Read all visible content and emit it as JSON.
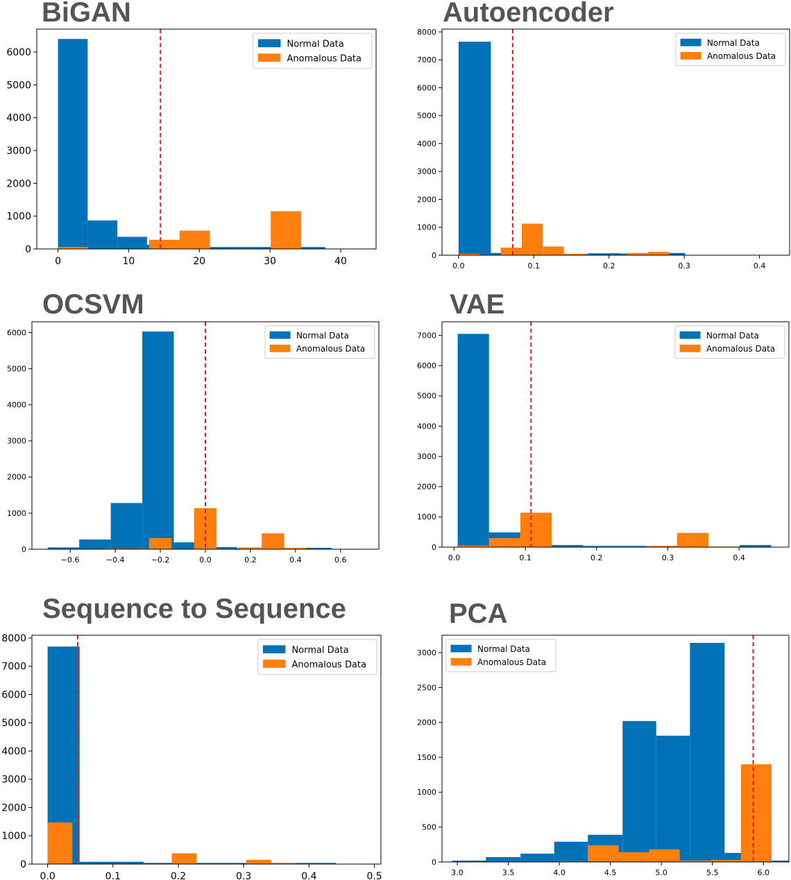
{
  "colors": {
    "normal": "#0072b8",
    "anomalous": "#ff7f0e",
    "threshold": "#e8191c"
  },
  "legend_labels": [
    "Normal Data",
    "Anomalous Data"
  ],
  "chart_data": [
    {
      "id": "bigan",
      "type": "bar",
      "title": "BiGAN",
      "xlabel": "",
      "ylabel": "",
      "xlim": [
        -3,
        45
      ],
      "ylim": [
        0,
        6700
      ],
      "xticks": [
        0,
        10,
        20,
        30,
        40
      ],
      "xtick_labels": [
        "0",
        "10",
        "20",
        "30",
        "40"
      ],
      "yticks": [
        0,
        1000,
        2000,
        3000,
        4000,
        5000,
        6000
      ],
      "ytick_labels": [
        "0",
        "1000",
        "2000",
        "3000",
        "4000",
        "5000",
        "6000"
      ],
      "threshold": 14.5,
      "legend_position": "top-right",
      "grid": false,
      "series": [
        {
          "name": "Normal Data",
          "bins": [
            [
              0,
              4.2,
              6400
            ],
            [
              4.2,
              8.4,
              870
            ],
            [
              8.4,
              12.6,
              370
            ],
            [
              12.6,
              16.8,
              130
            ],
            [
              16.8,
              21,
              80
            ],
            [
              21,
              25.2,
              60
            ],
            [
              25.2,
              29.4,
              60
            ],
            [
              29.4,
              33.6,
              60
            ],
            [
              33.6,
              37.8,
              60
            ],
            [
              37.8,
              42,
              10
            ]
          ]
        },
        {
          "name": "Anomalous Data",
          "bins": [
            [
              0,
              4.3,
              60
            ],
            [
              12.9,
              17.2,
              280
            ],
            [
              17.2,
              21.5,
              560
            ],
            [
              30.1,
              34.4,
              1150
            ]
          ]
        }
      ]
    },
    {
      "id": "autoencoder",
      "type": "bar",
      "title": "Autoencoder",
      "xlabel": "",
      "ylabel": "",
      "xlim": [
        -0.022,
        0.44
      ],
      "ylim": [
        0,
        8100
      ],
      "xticks": [
        0,
        0.1,
        0.2,
        0.3,
        0.4
      ],
      "xtick_labels": [
        "0.0",
        "0.1",
        "0.2",
        "0.3",
        "0.4"
      ],
      "yticks": [
        0,
        1000,
        2000,
        3000,
        4000,
        5000,
        6000,
        7000,
        8000
      ],
      "ytick_labels": [
        "0",
        "1000",
        "2000",
        "3000",
        "4000",
        "5000",
        "6000",
        "7000",
        "8000"
      ],
      "threshold": 0.072,
      "legend_position": "top-right",
      "grid": false,
      "series": [
        {
          "name": "Normal Data",
          "bins": [
            [
              0,
              0.043,
              7650
            ],
            [
              0.043,
              0.086,
              80
            ],
            [
              0.086,
              0.129,
              40
            ],
            [
              0.129,
              0.172,
              40
            ],
            [
              0.172,
              0.215,
              70
            ],
            [
              0.215,
              0.258,
              60
            ],
            [
              0.258,
              0.301,
              80
            ]
          ]
        },
        {
          "name": "Anomalous Data",
          "bins": [
            [
              0,
              0.028,
              50
            ],
            [
              0.056,
              0.084,
              270
            ],
            [
              0.084,
              0.112,
              1130
            ],
            [
              0.112,
              0.14,
              310
            ],
            [
              0.14,
              0.168,
              50
            ],
            [
              0.224,
              0.252,
              80
            ],
            [
              0.252,
              0.28,
              120
            ]
          ]
        }
      ]
    },
    {
      "id": "ocsvm",
      "type": "bar",
      "title": "OCSVM",
      "xlabel": "",
      "ylabel": "",
      "xlim": [
        -0.77,
        0.77
      ],
      "ylim": [
        0,
        6300
      ],
      "xticks": [
        -0.6,
        -0.4,
        -0.2,
        0.0,
        0.2,
        0.4,
        0.6
      ],
      "xtick_labels": [
        "−0.6",
        "−0.4",
        "−0.2",
        "0.0",
        "0.2",
        "0.4",
        "0.6"
      ],
      "yticks": [
        0,
        1000,
        2000,
        3000,
        4000,
        5000,
        6000
      ],
      "ytick_labels": [
        "0",
        "1000",
        "2000",
        "3000",
        "4000",
        "5000",
        "6000"
      ],
      "threshold": 0.0,
      "legend_position": "top-right",
      "grid": false,
      "series": [
        {
          "name": "Normal Data",
          "bins": [
            [
              -0.7,
              -0.56,
              50
            ],
            [
              -0.56,
              -0.42,
              270
            ],
            [
              -0.42,
              -0.28,
              1280
            ],
            [
              -0.28,
              -0.14,
              6030
            ],
            [
              -0.14,
              0.0,
              190
            ],
            [
              0.0,
              0.14,
              60
            ],
            [
              0.14,
              0.28,
              30
            ],
            [
              0.28,
              0.42,
              20
            ],
            [
              0.42,
              0.56,
              40
            ],
            [
              0.56,
              0.7,
              10
            ]
          ]
        },
        {
          "name": "Anomalous Data",
          "bins": [
            [
              -0.45,
              -0.35,
              20
            ],
            [
              -0.35,
              -0.25,
              20
            ],
            [
              -0.25,
              -0.15,
              310
            ],
            [
              -0.05,
              0.05,
              1140
            ],
            [
              0.15,
              0.25,
              50
            ],
            [
              0.25,
              0.35,
              440
            ],
            [
              0.35,
              0.45,
              40
            ]
          ]
        }
      ]
    },
    {
      "id": "vae",
      "type": "bar",
      "title": "VAE",
      "xlabel": "",
      "ylabel": "",
      "xlim": [
        -0.017,
        0.47
      ],
      "ylim": [
        0,
        7450
      ],
      "xticks": [
        0,
        0.1,
        0.2,
        0.3,
        0.4
      ],
      "xtick_labels": [
        "0.0",
        "0.1",
        "0.2",
        "0.3",
        "0.4"
      ],
      "yticks": [
        0,
        1000,
        2000,
        3000,
        4000,
        5000,
        6000,
        7000
      ],
      "ytick_labels": [
        "0",
        "1000",
        "2000",
        "3000",
        "4000",
        "5000",
        "6000",
        "7000"
      ],
      "threshold": 0.108,
      "legend_position": "top-right",
      "grid": false,
      "series": [
        {
          "name": "Normal Data",
          "bins": [
            [
              0.005,
              0.049,
              7050
            ],
            [
              0.049,
              0.093,
              490
            ],
            [
              0.093,
              0.137,
              200
            ],
            [
              0.137,
              0.181,
              70
            ],
            [
              0.181,
              0.225,
              40
            ],
            [
              0.225,
              0.269,
              40
            ],
            [
              0.269,
              0.313,
              40
            ],
            [
              0.313,
              0.357,
              30
            ],
            [
              0.357,
              0.401,
              10
            ],
            [
              0.401,
              0.445,
              70
            ]
          ]
        },
        {
          "name": "Anomalous Data",
          "bins": [
            [
              0.005,
              0.049,
              50
            ],
            [
              0.049,
              0.093,
              300
            ],
            [
              0.093,
              0.137,
              1140
            ],
            [
              0.269,
              0.313,
              40
            ],
            [
              0.313,
              0.357,
              470
            ],
            [
              0.357,
              0.401,
              20
            ]
          ]
        }
      ]
    },
    {
      "id": "seq2seq",
      "type": "bar",
      "title": "Sequence to Sequence",
      "xlabel": "",
      "ylabel": "",
      "xlim": [
        -0.024,
        0.51
      ],
      "ylim": [
        0,
        8100
      ],
      "xticks": [
        0,
        0.1,
        0.2,
        0.3,
        0.4,
        0.5
      ],
      "xtick_labels": [
        "0.0",
        "0.1",
        "0.2",
        "0.3",
        "0.4",
        "0.5"
      ],
      "yticks": [
        0,
        1000,
        2000,
        3000,
        4000,
        5000,
        6000,
        7000,
        8000
      ],
      "ytick_labels": [
        "0",
        "1000",
        "2000",
        "3000",
        "4000",
        "5000",
        "6000",
        "7000",
        "8000"
      ],
      "threshold": 0.046,
      "legend_position": "top-right",
      "grid": false,
      "series": [
        {
          "name": "Normal Data",
          "bins": [
            [
              0,
              0.049,
              7700
            ],
            [
              0.049,
              0.098,
              80
            ],
            [
              0.098,
              0.147,
              80
            ],
            [
              0.147,
              0.196,
              40
            ],
            [
              0.196,
              0.245,
              40
            ],
            [
              0.245,
              0.294,
              40
            ],
            [
              0.294,
              0.343,
              40
            ],
            [
              0.343,
              0.392,
              40
            ],
            [
              0.392,
              0.441,
              40
            ]
          ]
        },
        {
          "name": "Anomalous Data",
          "bins": [
            [
              0,
              0.038,
              1470
            ],
            [
              0.19,
              0.228,
              380
            ],
            [
              0.304,
              0.342,
              150
            ],
            [
              0.342,
              0.38,
              40
            ]
          ]
        }
      ]
    },
    {
      "id": "pca",
      "type": "bar",
      "title": "PCA",
      "xlabel": "",
      "ylabel": "",
      "xlim": [
        2.85,
        6.25
      ],
      "ylim": [
        0,
        3250
      ],
      "xticks": [
        3.0,
        3.5,
        4.0,
        4.5,
        5.0,
        5.5,
        6.0
      ],
      "xtick_labels": [
        "3.0",
        "3.5",
        "4.0",
        "4.5",
        "5.0",
        "5.5",
        "6.0"
      ],
      "yticks": [
        0,
        500,
        1000,
        1500,
        2000,
        2500,
        3000
      ],
      "ytick_labels": [
        "0",
        "500",
        "1000",
        "1500",
        "2000",
        "2500",
        "3000"
      ],
      "threshold": 5.9,
      "legend_position": "top-left",
      "grid": false,
      "series": [
        {
          "name": "Normal Data",
          "bins": [
            [
              2.95,
              3.28,
              20
            ],
            [
              3.28,
              3.62,
              70
            ],
            [
              3.62,
              3.95,
              120
            ],
            [
              3.95,
              4.28,
              290
            ],
            [
              4.28,
              4.62,
              390
            ],
            [
              4.62,
              4.95,
              2020
            ],
            [
              4.95,
              5.28,
              1810
            ],
            [
              5.28,
              5.62,
              3140
            ],
            [
              5.62,
              5.95,
              130
            ],
            [
              5.95,
              6.28,
              20
            ]
          ]
        },
        {
          "name": "Anomalous Data",
          "bins": [
            [
              3.98,
              4.28,
              10
            ],
            [
              4.28,
              4.58,
              240
            ],
            [
              4.58,
              4.88,
              140
            ],
            [
              4.88,
              5.18,
              180
            ],
            [
              5.18,
              5.48,
              20
            ],
            [
              5.48,
              5.78,
              30
            ],
            [
              5.78,
              6.08,
              1400
            ]
          ]
        }
      ]
    }
  ]
}
